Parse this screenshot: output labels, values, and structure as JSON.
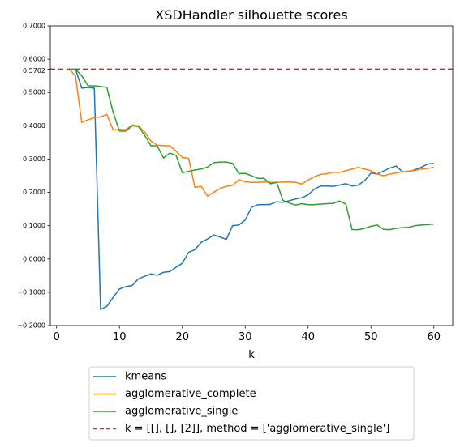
{
  "chart_data": {
    "type": "line",
    "title": "XSDHandler silhouette scores",
    "xlabel": "k",
    "ylabel": "",
    "xlim": [
      -1,
      63
    ],
    "ylim": [
      -0.2,
      0.7
    ],
    "x_ticks": [
      0,
      10,
      20,
      30,
      40,
      50,
      60
    ],
    "y_ticks": [
      -0.2,
      -0.1,
      0.0,
      0.1,
      0.2,
      0.3,
      0.4,
      0.5,
      0.6,
      0.7
    ],
    "y_tick_labels": [
      "−0.2000",
      "−0.1000",
      "0.0000",
      "0.1000",
      "0.2000",
      "0.3000",
      "0.4000",
      "0.5000",
      "0.6000",
      "0.7000"
    ],
    "extra_y_tick": {
      "value": 0.5702,
      "label": "0.5702"
    },
    "x": [
      2,
      3,
      4,
      5,
      6,
      7,
      8,
      9,
      10,
      11,
      12,
      13,
      14,
      15,
      16,
      17,
      18,
      19,
      20,
      21,
      22,
      23,
      24,
      25,
      26,
      27,
      28,
      29,
      30,
      31,
      32,
      33,
      34,
      35,
      36,
      37,
      38,
      39,
      40,
      41,
      42,
      43,
      44,
      45,
      46,
      47,
      48,
      49,
      50,
      51,
      52,
      53,
      54,
      55,
      56,
      57,
      58,
      59,
      60
    ],
    "series": [
      {
        "name": "kmeans",
        "color": "#1f77b4",
        "values": [
          0.57,
          0.57,
          0.513,
          0.515,
          0.513,
          -0.152,
          -0.142,
          -0.115,
          -0.09,
          -0.083,
          -0.08,
          -0.06,
          -0.052,
          -0.045,
          -0.049,
          -0.04,
          -0.038,
          -0.025,
          -0.013,
          0.02,
          0.028,
          0.05,
          0.06,
          0.072,
          0.066,
          0.059,
          0.1,
          0.102,
          0.117,
          0.155,
          0.163,
          0.163,
          0.164,
          0.172,
          0.17,
          0.175,
          0.18,
          0.184,
          0.192,
          0.21,
          0.219,
          0.219,
          0.218,
          0.222,
          0.226,
          0.219,
          0.222,
          0.235,
          0.258,
          0.255,
          0.264,
          0.273,
          0.279,
          0.262,
          0.262,
          0.268,
          0.275,
          0.285,
          0.287
        ]
      },
      {
        "name": "agglomerative_complete",
        "color": "#ff7f0e",
        "values": [
          0.57,
          0.55,
          0.41,
          0.418,
          0.424,
          0.427,
          0.434,
          0.387,
          0.389,
          0.388,
          0.402,
          0.4,
          0.382,
          0.354,
          0.342,
          0.34,
          0.34,
          0.324,
          0.305,
          0.302,
          0.215,
          0.218,
          0.189,
          0.2,
          0.212,
          0.218,
          0.221,
          0.238,
          0.232,
          0.23,
          0.23,
          0.231,
          0.23,
          0.23,
          0.231,
          0.231,
          0.23,
          0.225,
          0.237,
          0.247,
          0.254,
          0.256,
          0.26,
          0.26,
          0.265,
          0.27,
          0.275,
          0.27,
          0.265,
          0.255,
          0.25,
          0.255,
          0.258,
          0.262,
          0.264,
          0.266,
          0.27,
          0.272,
          0.275
        ]
      },
      {
        "name": "agglomerative_single",
        "color": "#2ca02c",
        "values": [
          0.57,
          0.57,
          0.55,
          0.52,
          0.52,
          0.518,
          0.515,
          0.44,
          0.384,
          0.384,
          0.4,
          0.398,
          0.372,
          0.34,
          0.34,
          0.303,
          0.318,
          0.311,
          0.259,
          0.263,
          0.267,
          0.27,
          0.276,
          0.289,
          0.291,
          0.291,
          0.287,
          0.256,
          0.257,
          0.25,
          0.242,
          0.242,
          0.226,
          0.23,
          0.176,
          0.168,
          0.162,
          0.166,
          0.163,
          0.163,
          0.165,
          0.166,
          0.167,
          0.174,
          0.165,
          0.088,
          0.088,
          0.092,
          0.098,
          0.102,
          0.089,
          0.088,
          0.092,
          0.094,
          0.095,
          0.1,
          0.102,
          0.103,
          0.105
        ]
      }
    ],
    "hline": {
      "y": 0.5702,
      "color": "#d62728",
      "style": "dashed",
      "name": "k = [[], [], [2]], method = ['agglomerative_single']"
    },
    "legend_position": "below-plot",
    "grid": false
  }
}
